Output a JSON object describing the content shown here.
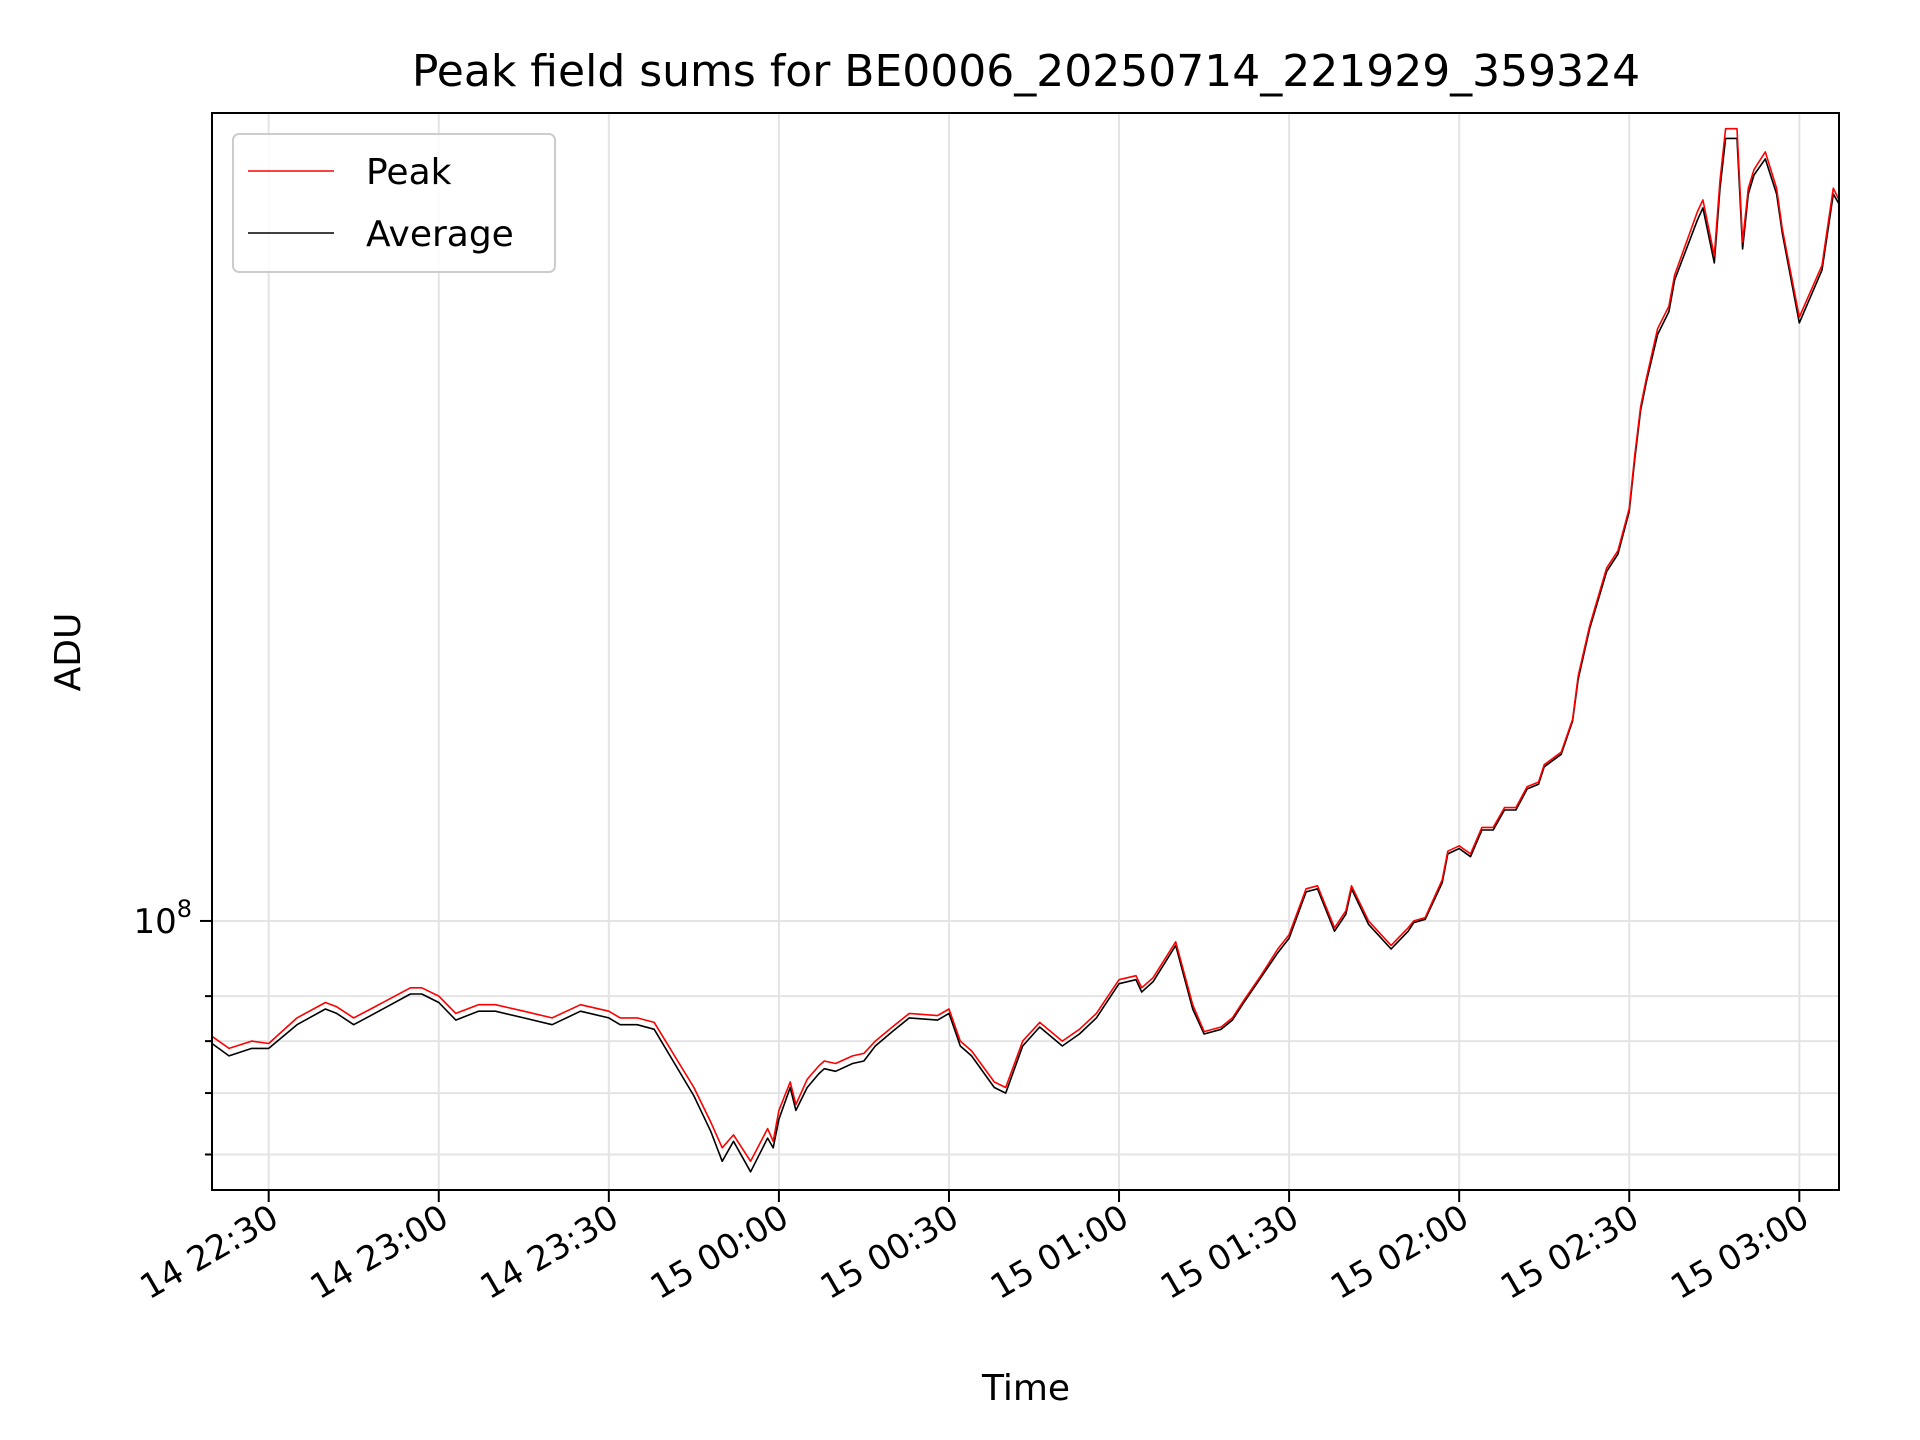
{
  "chart_data": {
    "type": "line",
    "title": "Peak field sums for BE0006_20250714_221929_359324",
    "xlabel": "Time",
    "ylabel": "ADU",
    "x_ticks": [
      "14 22:30",
      "14 23:00",
      "14 23:30",
      "15 00:00",
      "15 00:30",
      "15 01:00",
      "15 01:30",
      "15 02:00",
      "15 02:30",
      "15 03:00"
    ],
    "x_tick_minutes": [
      0,
      30,
      60,
      90,
      120,
      150,
      180,
      210,
      240,
      270
    ],
    "xlim_minutes": [
      -10.0,
      277.0
    ],
    "y_scale": "log",
    "ylim": [
      45000000,
      1100000000
    ],
    "y_major_ticks": [
      {
        "value": 100000000,
        "base": "10",
        "exp": "8"
      }
    ],
    "y_minor_ticks": [
      50000000,
      60000000,
      70000000,
      80000000
    ],
    "grid": true,
    "legend": {
      "position": "top-left",
      "entries": [
        "Peak",
        "Average"
      ]
    },
    "series": [
      {
        "name": "Peak",
        "color": "#ff0000",
        "x": [
          -10,
          -7,
          -3,
          0,
          5,
          10,
          12,
          15,
          18,
          25,
          27,
          30,
          33,
          37,
          40,
          45,
          50,
          55,
          60,
          62,
          65,
          68,
          75,
          78,
          80,
          82,
          85,
          88,
          89,
          90,
          92,
          93,
          95,
          97,
          98,
          100,
          103,
          105,
          107,
          110,
          113,
          118,
          120,
          122,
          124,
          128,
          130,
          133,
          136,
          140,
          143,
          146,
          150,
          153,
          154,
          156,
          160,
          163,
          165,
          168,
          170,
          172,
          175,
          178,
          180,
          183,
          185,
          188,
          190,
          191,
          194,
          198,
          201,
          202,
          204,
          207,
          208,
          210,
          212,
          214,
          216,
          218,
          220,
          222,
          224,
          225,
          228,
          230,
          231,
          233,
          236,
          238,
          240,
          241,
          242,
          243,
          245,
          247,
          248,
          252,
          253,
          255,
          256,
          257,
          259,
          260,
          261,
          262,
          264,
          266,
          267,
          270,
          274,
          276,
          277
        ],
        "y": [
          71000000,
          68500000,
          70000000,
          69500000,
          75000000,
          78500000,
          77500000,
          75000000,
          77000000,
          82000000,
          82000000,
          80000000,
          76000000,
          78000000,
          78000000,
          76500000,
          75000000,
          78000000,
          76500000,
          75000000,
          75000000,
          74000000,
          61000000,
          55000000,
          51000000,
          53000000,
          49000000,
          54000000,
          52000000,
          57000000,
          62000000,
          58000000,
          62500000,
          65000000,
          66000000,
          65500000,
          67000000,
          67500000,
          70000000,
          73000000,
          76000000,
          75500000,
          77000000,
          70000000,
          68000000,
          62000000,
          61000000,
          70000000,
          74000000,
          70000000,
          72500000,
          76000000,
          84000000,
          85000000,
          82000000,
          84500000,
          94000000,
          78000000,
          72000000,
          73000000,
          75000000,
          79000000,
          85000000,
          92000000,
          96000000,
          110000000,
          111000000,
          98000000,
          103000000,
          111000000,
          100000000,
          93000000,
          98000000,
          100000000,
          101000000,
          113000000,
          123000000,
          125000000,
          122000000,
          132000000,
          132000000,
          140000000,
          140000000,
          149000000,
          151000000,
          159000000,
          165000000,
          182000000,
          207000000,
          240000000,
          285000000,
          300000000,
          340000000,
          400000000,
          460000000,
          500000000,
          580000000,
          620000000,
          680000000,
          820000000,
          850000000,
          720000000,
          900000000,
          1050000000,
          1050000000,
          750000000,
          880000000,
          930000000,
          980000000,
          880000000,
          780000000,
          600000000,
          700000000,
          880000000,
          850000000
        ]
      },
      {
        "name": "Average",
        "color": "#000000",
        "x": [
          -10,
          -7,
          -3,
          0,
          5,
          10,
          12,
          15,
          18,
          25,
          27,
          30,
          33,
          37,
          40,
          45,
          50,
          55,
          60,
          62,
          65,
          68,
          75,
          78,
          80,
          82,
          85,
          88,
          89,
          90,
          92,
          93,
          95,
          97,
          98,
          100,
          103,
          105,
          107,
          110,
          113,
          118,
          120,
          122,
          124,
          128,
          130,
          133,
          136,
          140,
          143,
          146,
          150,
          153,
          154,
          156,
          160,
          163,
          165,
          168,
          170,
          172,
          175,
          178,
          180,
          183,
          185,
          188,
          190,
          191,
          194,
          198,
          201,
          202,
          204,
          207,
          208,
          210,
          212,
          214,
          216,
          218,
          220,
          222,
          224,
          225,
          228,
          230,
          231,
          233,
          236,
          238,
          240,
          241,
          242,
          243,
          245,
          247,
          248,
          252,
          253,
          255,
          256,
          257,
          259,
          260,
          261,
          262,
          264,
          266,
          267,
          270,
          274,
          276,
          277
        ],
        "y": [
          69500000,
          67000000,
          68500000,
          68500000,
          73500000,
          77000000,
          76000000,
          73500000,
          75500000,
          80500000,
          80500000,
          78500000,
          74500000,
          76500000,
          76500000,
          75000000,
          73500000,
          76500000,
          75000000,
          73500000,
          73500000,
          72500000,
          59500000,
          53500000,
          49000000,
          52000000,
          47500000,
          52500000,
          51000000,
          55500000,
          61000000,
          57000000,
          61000000,
          63500000,
          64500000,
          64000000,
          65500000,
          66000000,
          69000000,
          72000000,
          75000000,
          74500000,
          76000000,
          69000000,
          67000000,
          61000000,
          60000000,
          69000000,
          73000000,
          69000000,
          71500000,
          75000000,
          83000000,
          84000000,
          81000000,
          83500000,
          93000000,
          77000000,
          71500000,
          72500000,
          74500000,
          78500000,
          84500000,
          91000000,
          95000000,
          109000000,
          110000000,
          97000000,
          102000000,
          110000000,
          99000000,
          92000000,
          97000000,
          99500000,
          100500000,
          112000000,
          122000000,
          124000000,
          121000000,
          131000000,
          131000000,
          139000000,
          139000000,
          148000000,
          150000000,
          158000000,
          164000000,
          181000000,
          205000000,
          238000000,
          282000000,
          297000000,
          337000000,
          395000000,
          455000000,
          495000000,
          570000000,
          610000000,
          670000000,
          800000000,
          830000000,
          705000000,
          880000000,
          1020000000,
          1020000000,
          735000000,
          865000000,
          915000000,
          960000000,
          865000000,
          770000000,
          590000000,
          690000000,
          865000000,
          840000000
        ]
      }
    ]
  }
}
